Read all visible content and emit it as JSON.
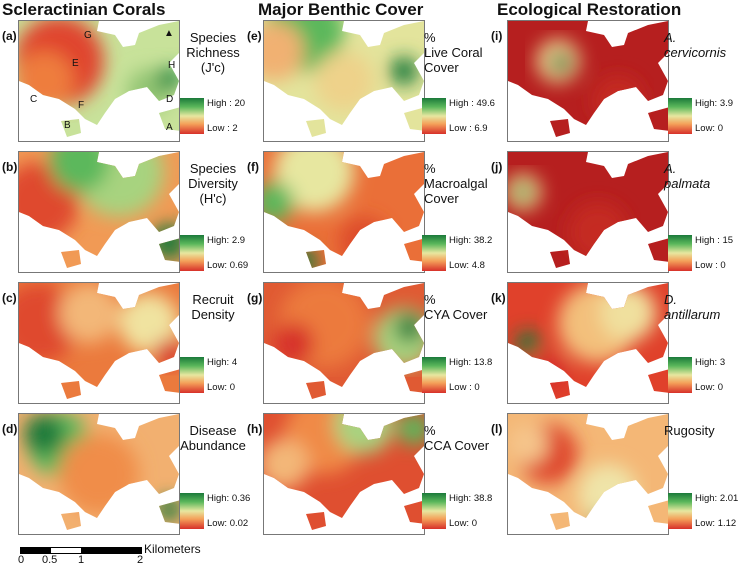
{
  "columns": [
    "Scleractinian Corals",
    "Major Benthic Cover",
    "Ecological Restoration"
  ],
  "panels": [
    {
      "letter": "(a)",
      "title": [
        "Species",
        "Richness",
        "(J'c)"
      ],
      "italic": false,
      "high": "High : 20",
      "low": "Low : 2",
      "theme": "a"
    },
    {
      "letter": "(b)",
      "title": [
        "Species",
        "Diversity",
        "(H'c)"
      ],
      "italic": false,
      "high": "High: 2.9",
      "low": "Low: 0.69",
      "theme": "b"
    },
    {
      "letter": "(c)",
      "title": [
        "Recruit",
        "Density"
      ],
      "italic": false,
      "high": "High: 4",
      "low": "Low: 0",
      "theme": "c"
    },
    {
      "letter": "(d)",
      "title": [
        "Disease",
        "Abundance"
      ],
      "italic": false,
      "high": "High: 0.36",
      "low": "Low: 0.02",
      "theme": "d"
    },
    {
      "letter": "(e)",
      "title": [
        "%",
        "Live Coral",
        "Cover"
      ],
      "italic": false,
      "high": "High : 49.6",
      "low": "Low : 6.9",
      "theme": "e"
    },
    {
      "letter": "(f)",
      "title": [
        "%",
        "Macroalgal",
        "Cover"
      ],
      "italic": false,
      "high": "High: 38.2",
      "low": "Low: 4.8",
      "theme": "f"
    },
    {
      "letter": "(g)",
      "title": [
        "%",
        "CYA Cover"
      ],
      "italic": false,
      "high": "High: 13.8",
      "low": "Low : 0",
      "theme": "g"
    },
    {
      "letter": "(h)",
      "title": [
        "%",
        "CCA Cover"
      ],
      "italic": false,
      "high": "High: 38.8",
      "low": "Low: 0",
      "theme": "h"
    },
    {
      "letter": "(i)",
      "title": [
        "A.",
        "cervicornis"
      ],
      "italic": true,
      "high": "High: 3.9",
      "low": "Low: 0",
      "theme": "i"
    },
    {
      "letter": "(j)",
      "title": [
        "A.",
        "palmata"
      ],
      "italic": true,
      "high": "High : 15",
      "low": "Low : 0",
      "theme": "j"
    },
    {
      "letter": "(k)",
      "title": [
        "D.",
        "antillarum"
      ],
      "italic": true,
      "high": "High: 3",
      "low": "Low: 0",
      "theme": "k"
    },
    {
      "letter": "(l)",
      "title": [
        "Rugosity"
      ],
      "italic": false,
      "high": "High: 2.01",
      "low": "Low: 1.12",
      "theme": "l"
    }
  ],
  "sites": [
    "A",
    "B",
    "C",
    "D",
    "E",
    "F",
    "G",
    "H"
  ],
  "north_arrow": "▲",
  "scale": {
    "unit": "Kilometers",
    "ticks": [
      "0",
      "0.5",
      "1",
      "2"
    ]
  },
  "colors": {
    "high": "#1b7a3a",
    "mid": "#e7e7a0",
    "low": "#d7302a"
  }
}
